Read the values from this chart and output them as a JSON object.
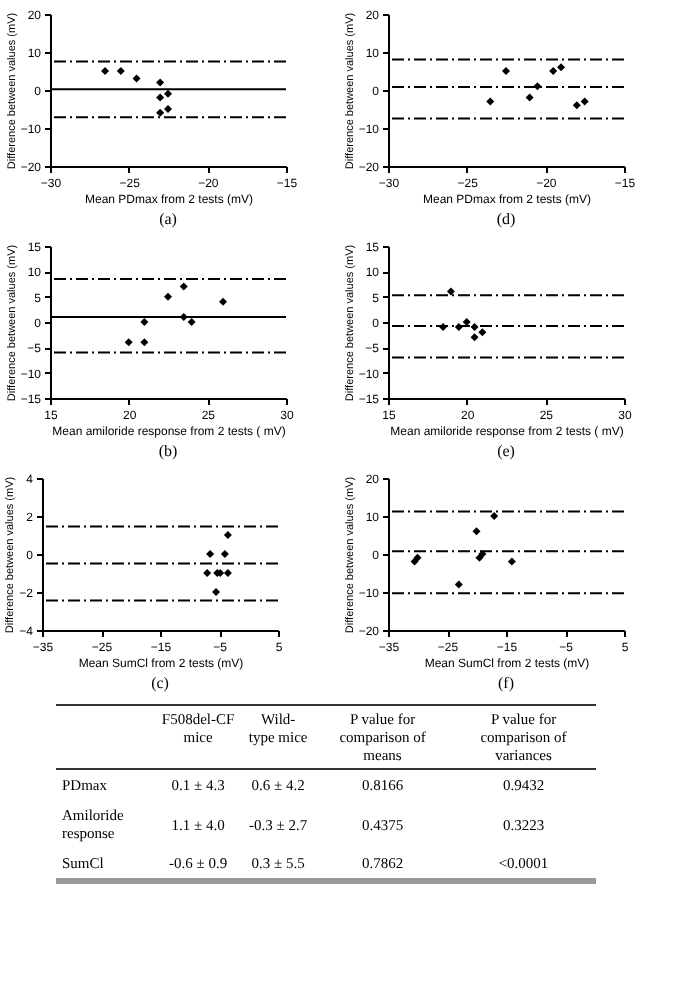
{
  "chart_data": [
    {
      "type": "scatter",
      "xlabel": "Mean PDmax from 2 tests (mV)",
      "ylabel": "Difference between values (mV)",
      "x": [
        -26.5,
        -25.5,
        -24.5,
        -23,
        -23,
        -22.5,
        -22.5,
        -23
      ],
      "values": [
        5,
        5,
        3,
        2,
        -2,
        -1,
        -5,
        -6
      ],
      "color": "#000000",
      "marker": "diamond",
      "xlim": [
        -30,
        -15
      ],
      "xticks": [
        -30,
        -25,
        -20,
        -15
      ],
      "ylim": [
        -20,
        20
      ],
      "yticks": [
        -20,
        -10,
        0,
        10,
        20
      ],
      "ref_lines": [
        {
          "axis": "y",
          "value": 7.5,
          "line_style": "dashed"
        },
        {
          "axis": "y",
          "value": 0.2,
          "line_style": "solid"
        },
        {
          "axis": "y",
          "value": -7.2,
          "line_style": "dashed"
        }
      ],
      "annotations": [
        "(a)"
      ]
    },
    {
      "type": "scatter",
      "xlabel": "Mean PDmax from 2 tests (mV)",
      "ylabel": "Difference between values (mV)",
      "x": [
        -23.5,
        -22.5,
        -21,
        -20.5,
        -19.5,
        -19,
        -18,
        -17.5
      ],
      "values": [
        -3,
        5,
        -2,
        1,
        5,
        6,
        -4,
        -3
      ],
      "color": "#000000",
      "marker": "diamond",
      "xlim": [
        -30,
        -15
      ],
      "xticks": [
        -30,
        -25,
        -20,
        -15
      ],
      "ylim": [
        -20,
        20
      ],
      "yticks": [
        -20,
        -10,
        0,
        10,
        20
      ],
      "ref_lines": [
        {
          "axis": "y",
          "value": 8,
          "line_style": "dashed"
        },
        {
          "axis": "y",
          "value": 0.8,
          "line_style": "dashed"
        },
        {
          "axis": "y",
          "value": -7.5,
          "line_style": "dashed"
        }
      ],
      "annotations": [
        "(d)"
      ]
    },
    {
      "type": "scatter",
      "xlabel": "Mean  amiloride response from 2 tests ( mV)",
      "ylabel": "Difference between values (mV)",
      "x": [
        20,
        21,
        21,
        22.5,
        23.5,
        23.5,
        24,
        26
      ],
      "values": [
        -4,
        -4,
        0,
        5,
        7,
        1,
        0,
        4
      ],
      "color": "#000000",
      "marker": "diamond",
      "xlim": [
        15,
        30
      ],
      "xticks": [
        15,
        20,
        25,
        30
      ],
      "ylim": [
        -15,
        15
      ],
      "yticks": [
        -15,
        -10,
        -5,
        0,
        5,
        10,
        15
      ],
      "ref_lines": [
        {
          "axis": "y",
          "value": 8.5,
          "line_style": "dashed"
        },
        {
          "axis": "y",
          "value": 1,
          "line_style": "solid"
        },
        {
          "axis": "y",
          "value": -6,
          "line_style": "dashed"
        }
      ],
      "annotations": [
        "(b)"
      ]
    },
    {
      "type": "scatter",
      "xlabel": "Mean amiloride response from 2 tests ( mV)",
      "ylabel": "Difference between values (mV)",
      "x": [
        18.5,
        19,
        19.5,
        20,
        20.5,
        20.5,
        21
      ],
      "values": [
        -1,
        6,
        -1,
        0,
        -1,
        -3,
        -2
      ],
      "color": "#000000",
      "marker": "diamond",
      "xlim": [
        15,
        30
      ],
      "xticks": [
        15,
        20,
        25,
        30
      ],
      "ylim": [
        -15,
        15
      ],
      "yticks": [
        -15,
        -10,
        -5,
        0,
        5,
        10,
        15
      ],
      "ref_lines": [
        {
          "axis": "y",
          "value": 5.3,
          "line_style": "dashed"
        },
        {
          "axis": "y",
          "value": -0.8,
          "line_style": "dashed"
        },
        {
          "axis": "y",
          "value": -7,
          "line_style": "dashed"
        }
      ],
      "annotations": [
        "(e)"
      ]
    },
    {
      "type": "scatter",
      "xlabel": "Mean SumCl from 2 tests (mV)",
      "ylabel": "Difference between values (mV)",
      "x": [
        -6.5,
        -7,
        -5.5,
        -5.3,
        -4.8,
        -4,
        -3.5,
        -3.5
      ],
      "values": [
        0,
        -1,
        -2,
        -1,
        -1,
        0,
        1,
        -1
      ],
      "color": "#000000",
      "marker": "diamond",
      "xlim": [
        -35,
        5
      ],
      "xticks": [
        -35,
        -25,
        -15,
        -5,
        5
      ],
      "ylim": [
        -4,
        4
      ],
      "yticks": [
        -4,
        -2,
        0,
        2,
        4
      ],
      "ref_lines": [
        {
          "axis": "y",
          "value": 1.45,
          "line_style": "dashed"
        },
        {
          "axis": "y",
          "value": -0.5,
          "line_style": "dashed"
        },
        {
          "axis": "y",
          "value": -2.45,
          "line_style": "dashed"
        }
      ],
      "annotations": [
        "(c)"
      ]
    },
    {
      "type": "scatter",
      "xlabel": "Mean SumCl from 2 tests (mV)",
      "ylabel": "Difference between values (mV)",
      "x": [
        -30.5,
        -30,
        -23,
        -20,
        -19.5,
        -19,
        -17,
        -14
      ],
      "values": [
        -2,
        -1,
        -8,
        6,
        -1,
        0,
        10,
        -2
      ],
      "color": "#000000",
      "marker": "diamond",
      "xlim": [
        -35,
        5
      ],
      "xticks": [
        -35,
        -25,
        -15,
        -5,
        5
      ],
      "ylim": [
        -20,
        20
      ],
      "yticks": [
        -20,
        -10,
        0,
        10,
        20
      ],
      "ref_lines": [
        {
          "axis": "y",
          "value": 11.2,
          "line_style": "dashed"
        },
        {
          "axis": "y",
          "value": 0.7,
          "line_style": "dashed"
        },
        {
          "axis": "y",
          "value": -10.3,
          "line_style": "dashed"
        }
      ],
      "annotations": [
        "(f)"
      ]
    },
    {
      "type": "other",
      "categories": [
        null,
        "F508del-CF mice",
        "Wild-type mice",
        "P value for comparison of means",
        "P value for comparison of variances"
      ],
      "y_categories": [
        "PDmax",
        "Amiloride response",
        "SumCl"
      ],
      "cell_labels": [
        [
          "0.1 ± 4.3",
          "0.6 ± 4.2",
          "0.8166",
          "0.9432"
        ],
        [
          "1.1 ± 4.0",
          "-0.3 ± 2.7",
          "0.4375",
          "0.3223"
        ],
        [
          "-0.6 ± 0.9",
          "0.3 ± 5.5",
          "0.7862",
          "<0.0001"
        ]
      ]
    }
  ]
}
